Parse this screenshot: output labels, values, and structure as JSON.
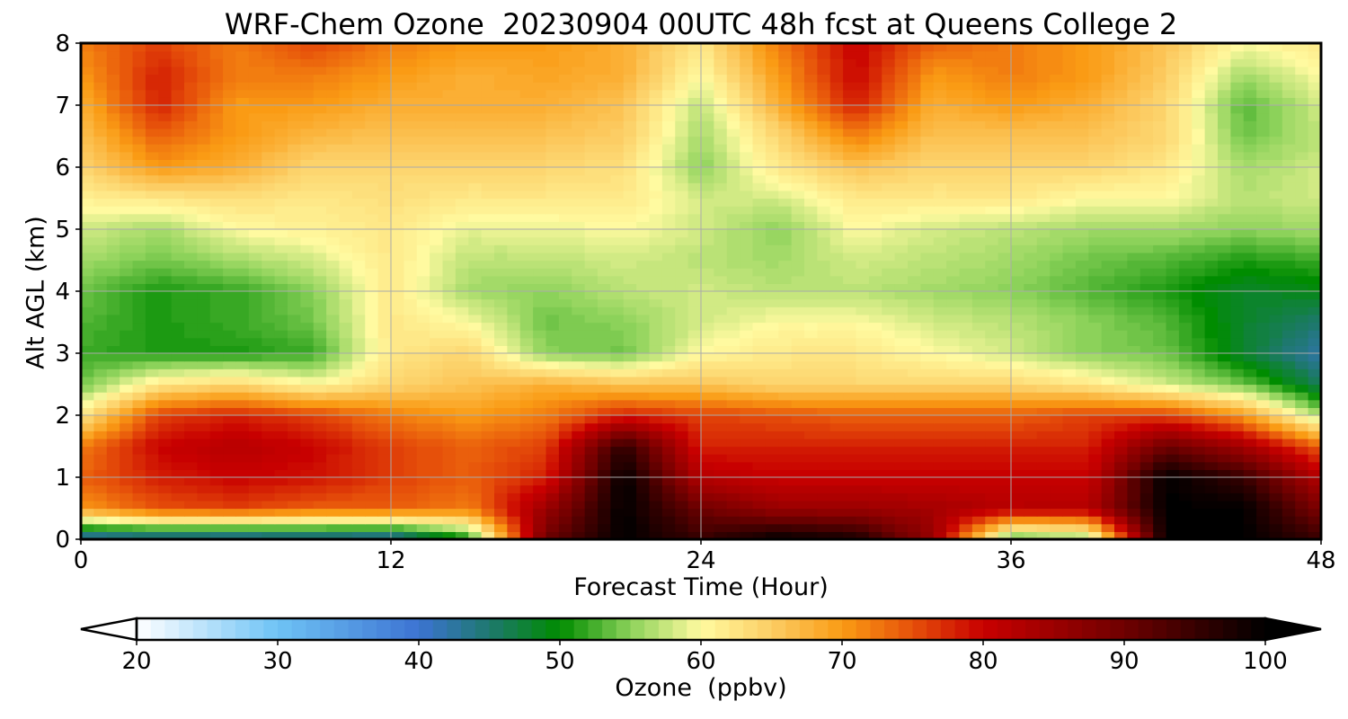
{
  "chart_data": {
    "type": "heatmap",
    "title": "WRF-Chem Ozone  20230904 00UTC 48h fcst at Queens College 2",
    "xlabel": "Forecast Time (Hour)",
    "ylabel": "Alt AGL (km)",
    "x_ticks": [
      "0",
      "12",
      "24",
      "36",
      "48"
    ],
    "y_ticks": [
      "0",
      "1",
      "2",
      "3",
      "4",
      "5",
      "6",
      "7",
      "8"
    ],
    "xlim": [
      0,
      48
    ],
    "ylim": [
      0,
      8
    ],
    "grid": true,
    "colorbar": {
      "label": "Ozone  (ppbv)",
      "ticks": [
        "20",
        "30",
        "40",
        "50",
        "60",
        "70",
        "80",
        "90",
        "100"
      ],
      "range": [
        20,
        100
      ],
      "extend": "both",
      "orientation": "horizontal",
      "placement": "bottom"
    },
    "x_hours": [
      0,
      3,
      6,
      9,
      12,
      15,
      18,
      21,
      24,
      27,
      30,
      33,
      36,
      39,
      42,
      45,
      48
    ],
    "y_km": [
      0,
      0.5,
      1,
      1.5,
      2,
      2.5,
      3,
      3.5,
      4,
      4.5,
      5,
      5.5,
      6,
      6.5,
      7,
      7.5,
      8
    ],
    "values": [
      [
        40,
        41,
        40,
        41,
        40,
        50,
        90,
        100,
        95,
        100,
        98,
        85,
        52,
        55,
        100,
        100,
        95
      ],
      [
        70,
        75,
        76,
        74,
        74,
        72,
        85,
        100,
        90,
        85,
        85,
        84,
        82,
        82,
        100,
        100,
        88
      ],
      [
        74,
        78,
        80,
        79,
        76,
        74,
        78,
        100,
        82,
        80,
        80,
        80,
        80,
        80,
        100,
        95,
        82
      ],
      [
        72,
        80,
        82,
        80,
        76,
        74,
        76,
        96,
        78,
        78,
        78,
        78,
        78,
        78,
        90,
        84,
        74
      ],
      [
        62,
        76,
        78,
        76,
        72,
        70,
        72,
        78,
        76,
        75,
        74,
        74,
        74,
        76,
        76,
        70,
        56
      ],
      [
        54,
        62,
        64,
        60,
        64,
        66,
        68,
        66,
        66,
        64,
        64,
        64,
        64,
        62,
        58,
        54,
        46
      ],
      [
        52,
        51,
        51,
        52,
        62,
        64,
        55,
        54,
        60,
        62,
        62,
        60,
        58,
        55,
        54,
        48,
        42
      ],
      [
        53,
        51,
        52,
        54,
        62,
        60,
        54,
        55,
        58,
        60,
        60,
        58,
        57,
        55,
        53,
        48,
        45
      ],
      [
        54,
        51,
        52,
        55,
        62,
        56,
        55,
        57,
        58,
        57,
        57,
        56,
        55,
        53,
        51,
        48,
        49
      ],
      [
        56,
        54,
        56,
        58,
        62,
        57,
        57,
        58,
        57,
        56,
        58,
        57,
        56,
        54,
        53,
        51,
        52
      ],
      [
        58,
        56,
        60,
        61,
        62,
        59,
        59,
        60,
        58,
        55,
        60,
        58,
        57,
        56,
        56,
        55,
        56
      ],
      [
        61,
        62,
        63,
        62,
        63,
        62,
        62,
        62,
        58,
        58,
        62,
        62,
        62,
        60,
        60,
        57,
        58
      ],
      [
        64,
        70,
        68,
        64,
        64,
        64,
        64,
        63,
        55,
        62,
        66,
        64,
        64,
        64,
        62,
        56,
        58
      ],
      [
        66,
        74,
        70,
        67,
        66,
        66,
        66,
        65,
        56,
        64,
        72,
        66,
        66,
        66,
        64,
        54,
        57
      ],
      [
        68,
        78,
        70,
        70,
        68,
        68,
        68,
        66,
        57,
        68,
        78,
        68,
        70,
        68,
        64,
        53,
        58
      ],
      [
        70,
        78,
        72,
        72,
        70,
        68,
        69,
        68,
        60,
        70,
        80,
        70,
        72,
        70,
        65,
        56,
        60
      ],
      [
        72,
        76,
        72,
        76,
        72,
        70,
        70,
        68,
        62,
        72,
        80,
        74,
        72,
        70,
        66,
        60,
        62
      ]
    ]
  }
}
